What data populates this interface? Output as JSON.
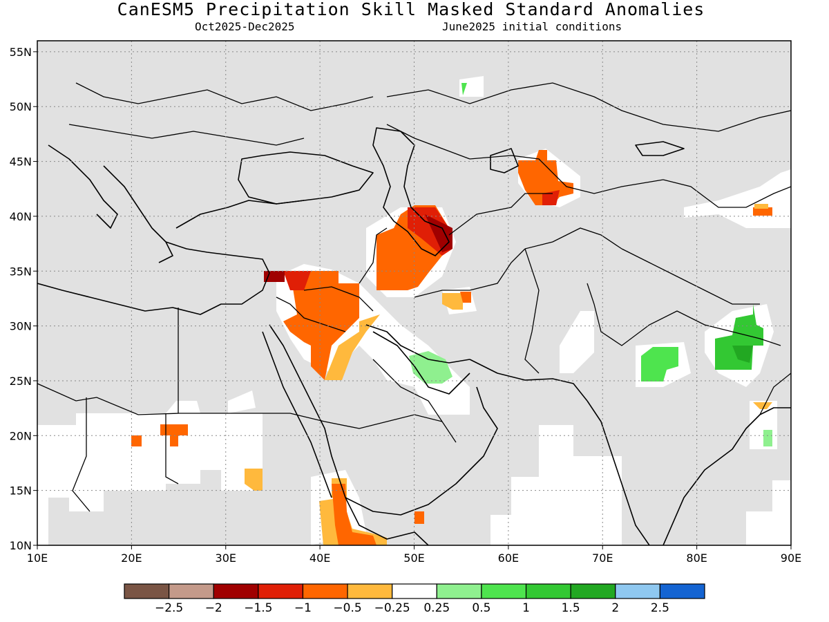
{
  "title": "CanESM5 Precipitation Skill Masked Standard Anomalies",
  "subtitle_left": "Oct2025-Dec2025",
  "subtitle_right": "June2025 initial conditions",
  "map": {
    "lon_range": [
      10,
      90
    ],
    "lat_range": [
      10,
      56
    ],
    "x_ticks": [
      "10E",
      "20E",
      "30E",
      "40E",
      "50E",
      "60E",
      "70E",
      "80E",
      "90E"
    ],
    "y_ticks": [
      "55N",
      "50N",
      "45N",
      "40N",
      "35N",
      "30N",
      "25N",
      "20N",
      "15N",
      "10N"
    ],
    "background_color": "#e1e1e1",
    "grid": "dotted"
  },
  "colorbar": {
    "colors": [
      "#7a5545",
      "#c49a8a",
      "#a00000",
      "#e01f06",
      "#ff6600",
      "#ffb93d",
      "#ffffff",
      "#8ff08f",
      "#4ee44e",
      "#33c833",
      "#22a822",
      "#8fc8f0",
      "#1464d2"
    ],
    "labels": [
      "-2.5",
      "-2",
      "-1.5",
      "-1",
      "-0.5",
      "-0.25",
      "0.25",
      "0.5",
      "1",
      "1.5",
      "2",
      "2.5"
    ]
  }
}
